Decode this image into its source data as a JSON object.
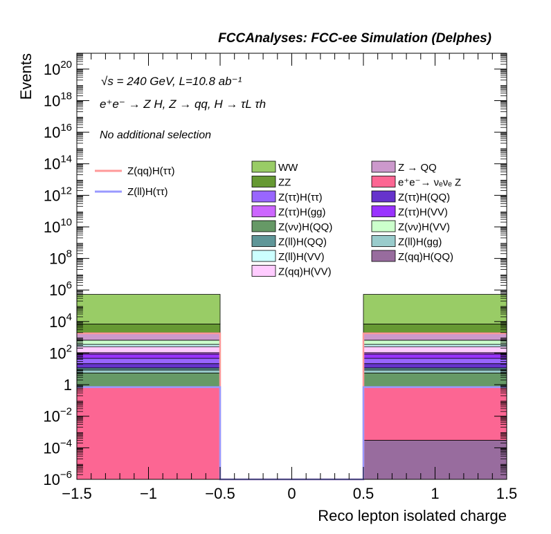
{
  "chart_data": {
    "type": "bar",
    "stacked": true,
    "title": "FCCAnalyses: FCC-ee Simulation (Delphes)",
    "xlabel": "Reco lepton isolated charge",
    "ylabel": "Events",
    "xlim": [
      -1.5,
      1.5
    ],
    "ylim": [
      1e-06,
      1e+21
    ],
    "log_y": true,
    "x_ticks": [
      {
        "v": -1.5,
        "label": "−1.5"
      },
      {
        "v": -1.0,
        "label": "−1"
      },
      {
        "v": -0.5,
        "label": "−0.5"
      },
      {
        "v": 0.0,
        "label": "0"
      },
      {
        "v": 0.5,
        "label": "0.5"
      },
      {
        "v": 1.0,
        "label": "1"
      },
      {
        "v": 1.5,
        "label": "1.5"
      }
    ],
    "y_ticks": [
      {
        "exp": -6,
        "base": "10",
        "sup": "−6"
      },
      {
        "exp": -4,
        "base": "10",
        "sup": "−4"
      },
      {
        "exp": -2,
        "base": "10",
        "sup": "−2"
      },
      {
        "exp": 0,
        "base": "1",
        "sup": ""
      },
      {
        "exp": 2,
        "base": "10",
        "sup": "2"
      },
      {
        "exp": 4,
        "base": "10",
        "sup": "4"
      },
      {
        "exp": 6,
        "base": "10",
        "sup": "6"
      },
      {
        "exp": 8,
        "base": "10",
        "sup": "8"
      },
      {
        "exp": 10,
        "base": "10",
        "sup": "10"
      },
      {
        "exp": 12,
        "base": "10",
        "sup": "12"
      },
      {
        "exp": 14,
        "base": "10",
        "sup": "14"
      },
      {
        "exp": 16,
        "base": "10",
        "sup": "16"
      },
      {
        "exp": 18,
        "base": "10",
        "sup": "18"
      },
      {
        "exp": 20,
        "base": "10",
        "sup": "20"
      }
    ],
    "bins": [
      [
        -1.5,
        -0.5
      ],
      [
        -0.5,
        0.5
      ],
      [
        0.5,
        1.5
      ]
    ],
    "stack_bottom_to_top": [
      {
        "name": "Z(qq)H(QQ)",
        "color": "#986c9e",
        "values": [
          0,
          0,
          0.0003
        ]
      },
      {
        "name": "e⁺e⁻→ νₑνₑ Z",
        "color": "#fc6693",
        "values": [
          0.7,
          0,
          0.7
        ]
      },
      {
        "name": "Z(νν)H(QQ)",
        "color": "#669966",
        "values": [
          4.8,
          0,
          4.8
        ]
      },
      {
        "name": "Z(ll)H(gg)",
        "color": "#99cccc",
        "values": [
          3,
          0,
          3
        ]
      },
      {
        "name": "Z(ll)H(QQ)",
        "color": "#5f9698",
        "values": [
          3,
          0,
          3
        ]
      },
      {
        "name": "Z(ττ)H(QQ)",
        "color": "#6633cc",
        "values": [
          10,
          0,
          10
        ]
      },
      {
        "name": "Z(ττ)H(ττ)",
        "color": "#9966ff",
        "values": [
          25,
          0,
          25
        ]
      },
      {
        "name": "Z(ττ)H(VV)",
        "color": "#9933ff",
        "values": [
          40,
          0,
          40
        ]
      },
      {
        "name": "Z(ττ)H(gg)",
        "color": "#cc66ff",
        "values": [
          20,
          0,
          20
        ]
      },
      {
        "name": "Z(qq)H(VV)",
        "color": "#ffccff",
        "values": [
          150,
          0,
          150
        ]
      },
      {
        "name": "Z(ll)H(VV)",
        "color": "#ccffff",
        "values": [
          100,
          0,
          100
        ]
      },
      {
        "name": "Z(νν)H(VV)",
        "color": "#ccffcc",
        "values": [
          300,
          0,
          300
        ]
      },
      {
        "name": "Z → QQ",
        "color": "#cc99cc",
        "values": [
          1300,
          0,
          1300
        ]
      },
      {
        "name": "ZZ",
        "color": "#669933",
        "values": [
          5000,
          0,
          5000
        ]
      },
      {
        "name": "WW",
        "color": "#99cc66",
        "values": [
          520000,
          0,
          520000
        ]
      }
    ],
    "lines": [
      {
        "name": "Z(qq)H(ττ)",
        "color": "#ff9999",
        "values": [
          1800,
          0,
          1800
        ]
      },
      {
        "name": "Z(ll)H(ττ)",
        "color": "#9999ff",
        "values": [
          0.7,
          0,
          0.7
        ]
      }
    ],
    "annotations": {
      "energy": "√s = 240 GeV, L=10.8 ab⁻¹",
      "process": "e⁺e⁻ → Z H, Z → qq, H → τL τh",
      "selection": "No additional selection"
    },
    "legend_left": [
      "Z(qq)H(ττ)",
      "Z(ll)H(ττ)"
    ],
    "legend_col1": [
      "WW",
      "ZZ",
      "Z(ττ)H(ττ)",
      "Z(ττ)H(gg)",
      "Z(νν)H(QQ)",
      "Z(ll)H(QQ)",
      "Z(ll)H(VV)",
      "Z(qq)H(VV)"
    ],
    "legend_col2": [
      "Z → QQ",
      "e⁺e⁻→ νₑνₑ Z",
      "Z(ττ)H(QQ)",
      "Z(ττ)H(VV)",
      "Z(νν)H(VV)",
      "Z(ll)H(gg)",
      "Z(qq)H(QQ)"
    ]
  }
}
